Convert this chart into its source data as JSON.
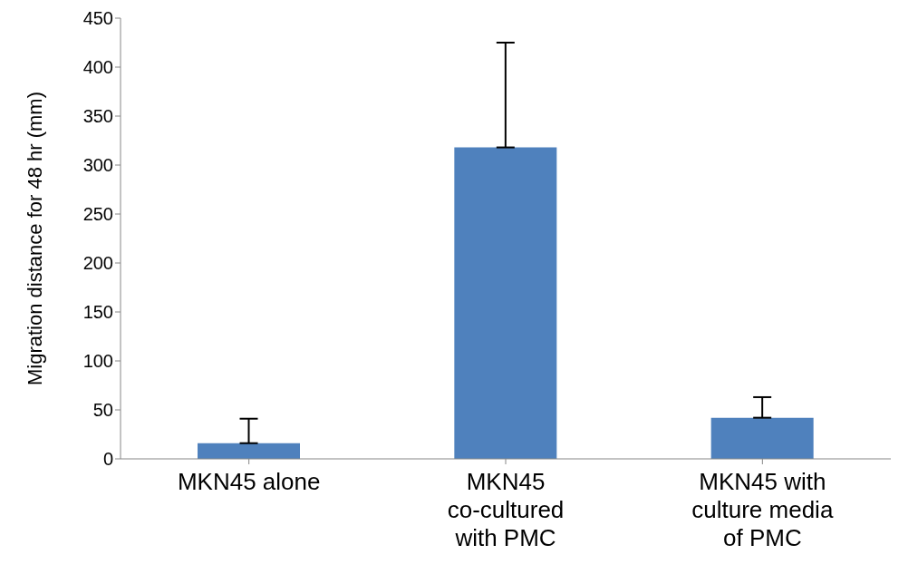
{
  "chart_data": {
    "type": "bar",
    "ylabel": "Migration distance for 48 hr (mm)",
    "categories": [
      "MKN45 alone",
      "MKN45 co-cultured with PMC",
      "MKN45 with culture media of PMC"
    ],
    "values": [
      16,
      318,
      42
    ],
    "errors": [
      [
        16,
        41
      ],
      [
        318,
        425
      ],
      [
        42,
        63
      ]
    ],
    "color": "#4f81bd",
    "ylim": [
      0,
      450
    ],
    "yticks": [
      0,
      50,
      100,
      150,
      200,
      250,
      300,
      350,
      400,
      450
    ],
    "grid": false
  }
}
